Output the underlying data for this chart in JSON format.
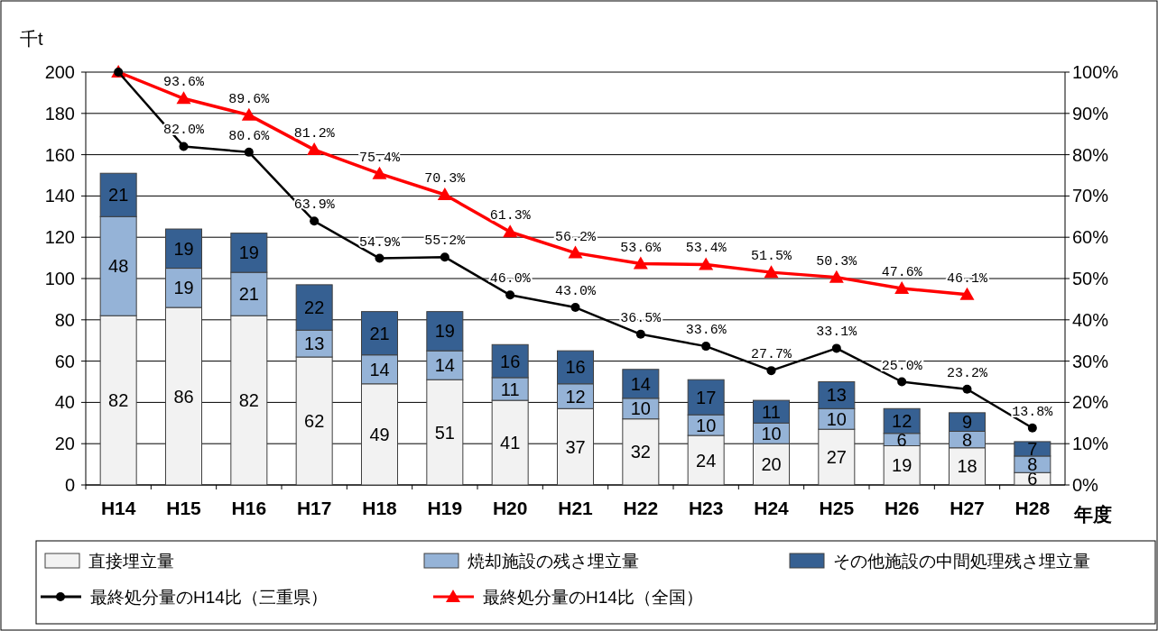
{
  "chart_data": {
    "type": "bar",
    "stacked": true,
    "ylabel": "千t",
    "xlabel": "年度",
    "categories": [
      "H14",
      "H15",
      "H16",
      "H17",
      "H18",
      "H19",
      "H20",
      "H21",
      "H22",
      "H23",
      "H24",
      "H25",
      "H26",
      "H27",
      "H28"
    ],
    "series": [
      {
        "name": "直接埋立量",
        "color": "#f2f2f2",
        "values": [
          82,
          86,
          82,
          62,
          49,
          51,
          41,
          37,
          32,
          24,
          20,
          27,
          19,
          18,
          6
        ]
      },
      {
        "name": "焼却施設の残さ埋立量",
        "color": "#95b3d7",
        "values": [
          48,
          19,
          21,
          13,
          14,
          14,
          11,
          12,
          10,
          10,
          10,
          10,
          6,
          8,
          8
        ]
      },
      {
        "name": "その他施設の中間処理残さ埋立量",
        "color": "#366092",
        "values": [
          21,
          19,
          19,
          22,
          21,
          19,
          16,
          16,
          14,
          17,
          11,
          13,
          12,
          9,
          7
        ]
      },
      {
        "name": "最終処分量のH14比（三重県）",
        "type": "line",
        "axis": "y2",
        "color": "#000000",
        "marker": "circle",
        "values": [
          100,
          82.0,
          80.6,
          63.9,
          54.9,
          55.2,
          46.0,
          43.0,
          36.5,
          33.6,
          27.7,
          33.1,
          25.0,
          23.2,
          13.8
        ],
        "value_labels": [
          null,
          "82.0%",
          "80.6%",
          "63.9%",
          "54.9%",
          "55.2%",
          "46.0%",
          "43.0%",
          "36.5%",
          "33.6%",
          "27.7%",
          "33.1%",
          "25.0%",
          "23.2%",
          "13.8%"
        ]
      },
      {
        "name": "最終処分量のH14比（全国）",
        "type": "line",
        "axis": "y2",
        "color": "#ff0000",
        "marker": "triangle",
        "values": [
          100,
          93.6,
          89.6,
          81.2,
          75.4,
          70.3,
          61.3,
          56.2,
          53.6,
          53.4,
          51.5,
          50.3,
          47.6,
          46.1,
          null
        ],
        "value_labels": [
          null,
          "93.6%",
          "89.6%",
          "81.2%",
          "75.4%",
          "70.3%",
          "61.3%",
          "56.2%",
          "53.6%",
          "53.4%",
          "51.5%",
          "50.3%",
          "47.6%",
          "46.1%",
          null
        ]
      }
    ],
    "data_labels": true,
    "ylim": [
      0,
      200
    ],
    "yticks": [
      0,
      20,
      40,
      60,
      80,
      100,
      120,
      140,
      160,
      180,
      200
    ],
    "y2lim": [
      0,
      100
    ],
    "y2ticks": [
      {
        "value": 0,
        "label": "0%"
      },
      {
        "value": 10,
        "label": "10%"
      },
      {
        "value": 20,
        "label": "20%"
      },
      {
        "value": 30,
        "label": "30%"
      },
      {
        "value": 40,
        "label": "40%"
      },
      {
        "value": 50,
        "label": "50%"
      },
      {
        "value": 60,
        "label": "60%"
      },
      {
        "value": 70,
        "label": "70%"
      },
      {
        "value": 80,
        "label": "80%"
      },
      {
        "value": 90,
        "label": "90%"
      },
      {
        "value": 100,
        "label": "100%"
      }
    ],
    "grid": "y",
    "legend": "bottom"
  }
}
